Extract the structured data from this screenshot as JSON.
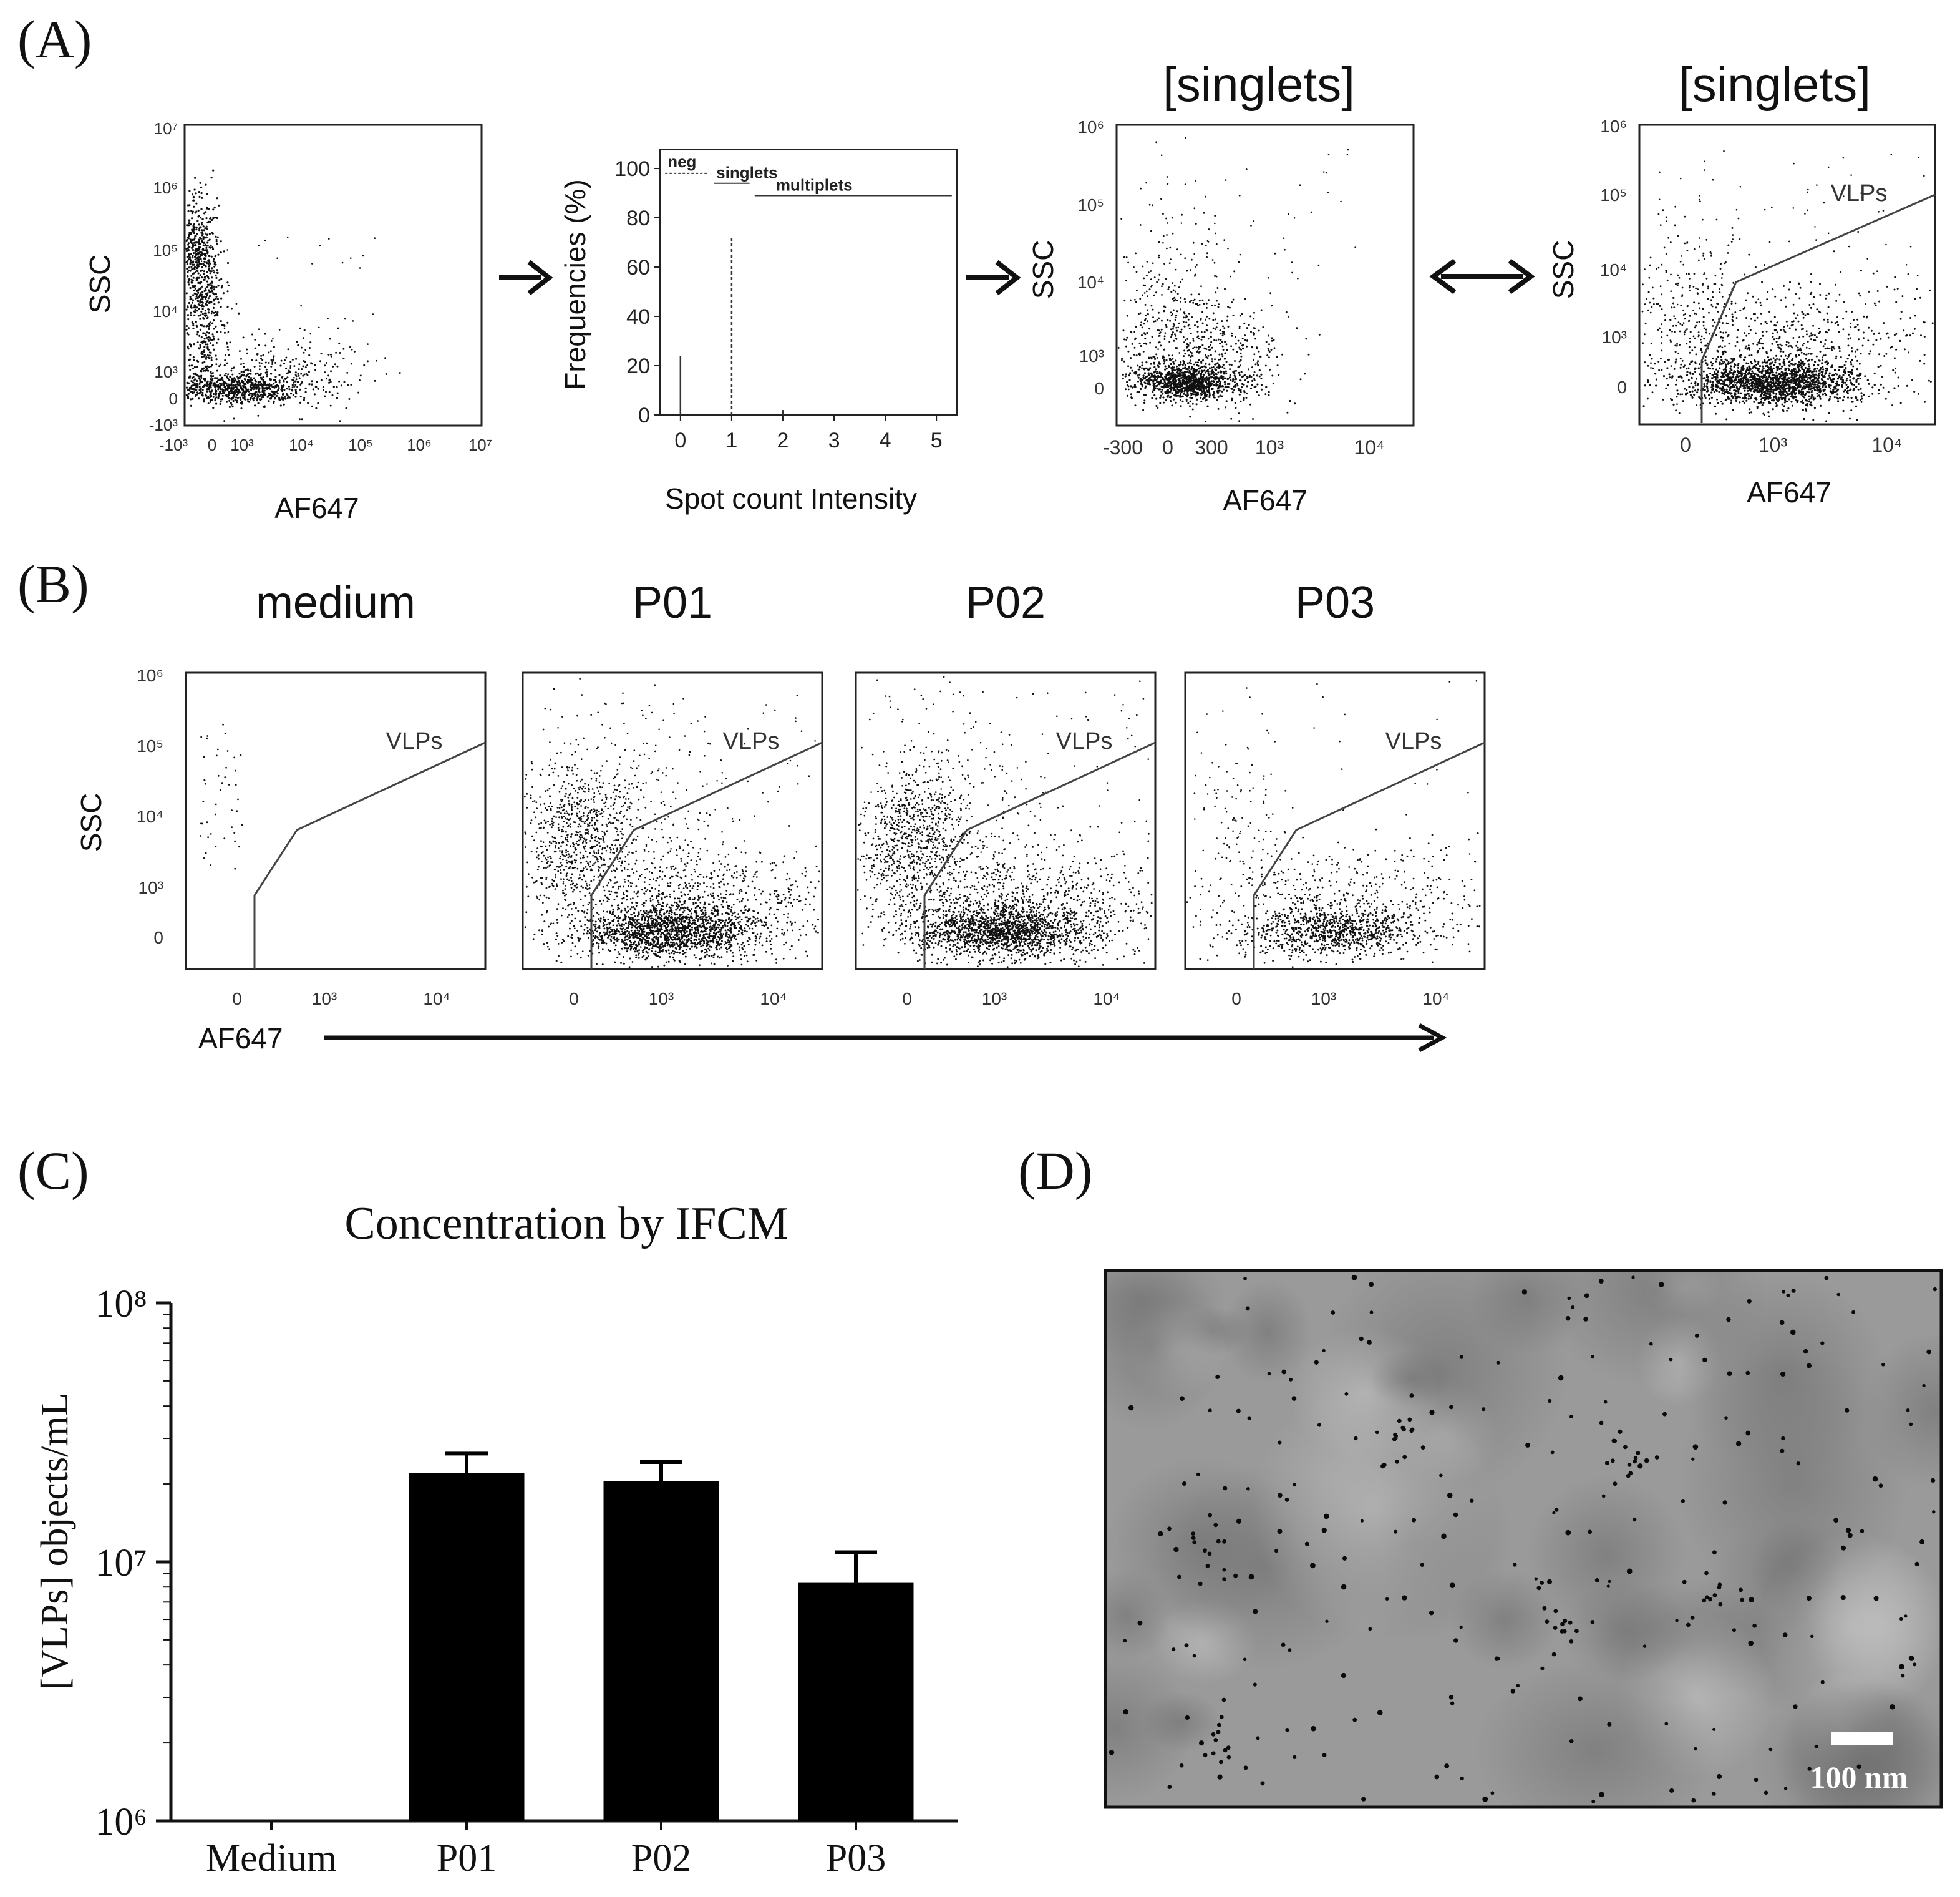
{
  "panel_labels": [
    "(A)",
    "(B)",
    "(C)",
    "(D)"
  ],
  "panel_a": {
    "plot1": {
      "ylabel": "SSC",
      "xlabel": "AF647",
      "yticks": [
        "10⁷",
        "10⁶",
        "10⁵",
        "10⁴",
        "10³",
        "0",
        "-10³"
      ],
      "xticks": [
        "-10³",
        "0",
        "10³",
        "10⁴",
        "10⁵",
        "10⁶",
        "10⁷"
      ]
    },
    "plot3": {
      "title": "[singlets]",
      "ylabel": "SSC",
      "xlabel": "AF647",
      "yticks": [
        "10⁶",
        "10⁵",
        "10⁴",
        "10³",
        "0"
      ],
      "xticks": [
        "-300",
        "0",
        "300",
        "10³",
        "10⁴"
      ]
    },
    "plot4": {
      "title": "[singlets]",
      "ylabel": "SSC",
      "xlabel": "AF647",
      "gate_label": "VLPs",
      "yticks": [
        "10⁶",
        "10⁵",
        "10⁴",
        "10³",
        "0"
      ],
      "xticks": [
        "0",
        "10³",
        "10⁴"
      ]
    }
  },
  "panel_b": {
    "ylabel": "SSC",
    "xlabel": "AF647",
    "gate_label": "VLPs",
    "yticks": [
      "10⁶",
      "10⁵",
      "10⁴",
      "10³",
      "0"
    ],
    "xticks": [
      "0",
      "10³",
      "10⁴"
    ],
    "plots": [
      {
        "title": "medium",
        "density": "sparse"
      },
      {
        "title": "P01",
        "density": "high"
      },
      {
        "title": "P02",
        "density": "high"
      },
      {
        "title": "P03",
        "density": "medium"
      }
    ]
  },
  "panel_d": {
    "scale_label": "100 nm"
  },
  "chart_data": [
    {
      "type": "bar",
      "title": "",
      "xlabel": "Spot count Intensity",
      "ylabel": "Frequencies (%)",
      "xlim": [
        -0.4,
        5.4
      ],
      "ylim": [
        0,
        100
      ],
      "xticks": [
        "0",
        "1",
        "2",
        "3",
        "4",
        "5"
      ],
      "yticks": [
        "0",
        "20",
        "40",
        "60",
        "80",
        "100"
      ],
      "series": [
        {
          "name": "",
          "x": [
            0,
            1,
            2
          ],
          "values": [
            24,
            73,
            2
          ],
          "styles": [
            "solid",
            "dashed",
            "solid"
          ]
        }
      ],
      "annotations": [
        {
          "text": "neg",
          "x_range": [
            -0.3,
            0.55
          ],
          "y": 98,
          "style": "dashed"
        },
        {
          "text": "singlets",
          "x_range": [
            0.65,
            1.35
          ],
          "y": 94,
          "style": "solid"
        },
        {
          "text": "multiplets",
          "x_range": [
            1.45,
            5.3
          ],
          "y": 89,
          "style": "solid"
        }
      ]
    },
    {
      "type": "bar",
      "title": "Concentration by IFCM",
      "xlabel": "",
      "ylabel": "[VLPs] objects/mL",
      "scale": "log",
      "ylim": [
        1000000,
        100000000
      ],
      "yticks": [
        "10⁸",
        "10⁷",
        "10⁶"
      ],
      "categories": [
        "Medium",
        "P01",
        "P02",
        "P03"
      ],
      "series": [
        {
          "name": "",
          "values": [
            null,
            22000000,
            20500000,
            8300000
          ],
          "errors": [
            null,
            4200000,
            3800000,
            2600000
          ]
        }
      ]
    }
  ]
}
